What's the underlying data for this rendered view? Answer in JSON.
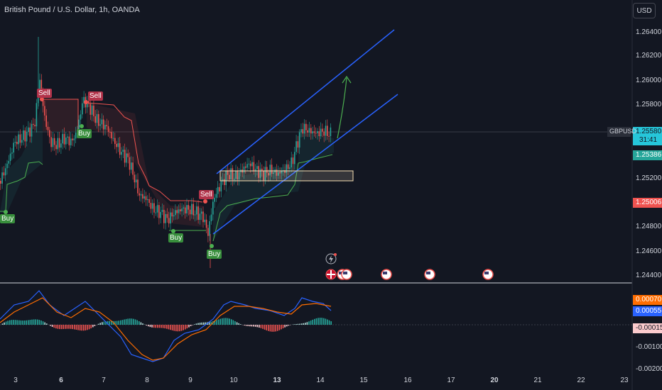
{
  "header": {
    "title": "British Pound / U.S. Dollar, 1h, OANDA",
    "currency_button": "USD"
  },
  "price_axis": {
    "ticks": [
      "1.26400",
      "1.26200",
      "1.26000",
      "1.25800",
      "1.25200",
      "1.24800",
      "1.24600",
      "1.24400"
    ],
    "symbol_tag": "GBPUSD",
    "current_price": "1.25580",
    "countdown": "31:41",
    "green_level": "1.25386",
    "red_level": "1.25006"
  },
  "indicator_axis": {
    "ticks": [
      "-0.00100",
      "-0.00200"
    ],
    "orange_value": "0.00070",
    "blue_value": "0.00055",
    "hist_value": "-0.00015"
  },
  "time_axis": {
    "labels": [
      {
        "text": "3",
        "bold": false
      },
      {
        "text": "6",
        "bold": true
      },
      {
        "text": "7",
        "bold": false
      },
      {
        "text": "8",
        "bold": false
      },
      {
        "text": "9",
        "bold": false
      },
      {
        "text": "10",
        "bold": false
      },
      {
        "text": "13",
        "bold": true
      },
      {
        "text": "14",
        "bold": false
      },
      {
        "text": "15",
        "bold": false
      },
      {
        "text": "16",
        "bold": false
      },
      {
        "text": "17",
        "bold": false
      },
      {
        "text": "20",
        "bold": true
      },
      {
        "text": "21",
        "bold": false
      },
      {
        "text": "22",
        "bold": false
      },
      {
        "text": "23",
        "bold": false
      }
    ]
  },
  "signals": {
    "buy": "Buy",
    "sell": "Sell"
  },
  "colors": {
    "background": "#131722",
    "up": "#26a69a",
    "down": "#ef5350",
    "channel": "#2962ff",
    "arrow": "#4caf50",
    "macd": "#2962ff",
    "signal": "#ff6d00"
  },
  "icons": {
    "events": [
      "flag-uk-icon",
      "flag-us-icon",
      "flag-us-icon",
      "flag-us-icon",
      "flag-us-icon",
      "flag-us-icon"
    ],
    "news": "lightning-icon"
  }
}
